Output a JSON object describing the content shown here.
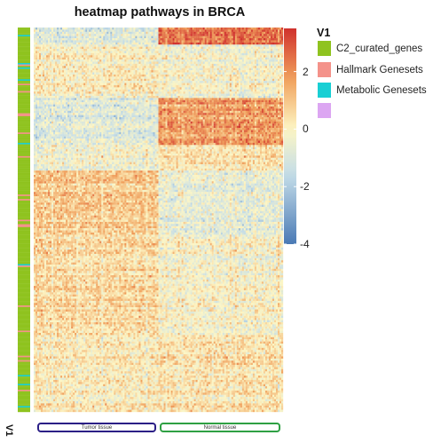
{
  "chart_data": {
    "type": "heatmap",
    "title": "heatmap pathways in BRCA",
    "color_scale": {
      "min": -4,
      "max": 3.5,
      "ticks": [
        2,
        0,
        -2,
        -4
      ],
      "tick_labels": [
        "2",
        "0",
        "-2",
        "-4"
      ],
      "low_color": "#4a7ab5",
      "mid_color": "#fdf6c4",
      "high_color": "#d0312d"
    },
    "column_groups": [
      {
        "name": "Tumor tissue",
        "share": 0.5,
        "border_color": "#2b1f86"
      },
      {
        "name": "Normal tissue",
        "share": 0.5,
        "border_color": "#2ea043"
      }
    ],
    "row_annotation": {
      "name": "V1",
      "categories": [
        {
          "label": "C2_curated_genes",
          "color": "#8fc31f"
        },
        {
          "label": "Hallmark Genesets",
          "color": "#f4928a"
        },
        {
          "label": "Metabolic Genesets",
          "color": "#19cfd4"
        },
        {
          "label": "",
          "color": "#dca6f2"
        }
      ]
    },
    "row_blocks": [
      {
        "fraction": 0.045,
        "tumor_mean": -0.8,
        "normal_mean": 2.6
      },
      {
        "fraction": 0.14,
        "tumor_mean": 0.1,
        "normal_mean": -0.3
      },
      {
        "fraction": 0.12,
        "tumor_mean": -0.9,
        "normal_mean": 1.8
      },
      {
        "fraction": 0.065,
        "tumor_mean": -0.2,
        "normal_mean": 0.6
      },
      {
        "fraction": 0.17,
        "tumor_mean": 0.9,
        "normal_mean": -0.7
      },
      {
        "fraction": 0.26,
        "tumor_mean": 0.6,
        "normal_mean": -0.2
      },
      {
        "fraction": 0.2,
        "tumor_mean": 0.3,
        "normal_mean": 0.5
      }
    ]
  }
}
